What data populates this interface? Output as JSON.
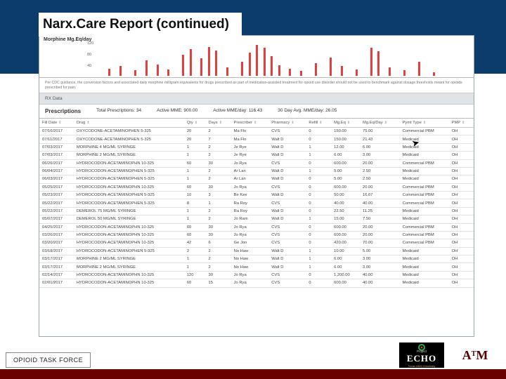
{
  "slide": {
    "title": "Narx.Care Report (continued)"
  },
  "chart": {
    "label": "Morphine Mg.Eq/day",
    "yticks": [
      120,
      80,
      40
    ],
    "bars": [
      {
        "x": 2,
        "h": 10
      },
      {
        "x": 5,
        "h": 14
      },
      {
        "x": 9,
        "h": 8
      },
      {
        "x": 12,
        "h": 22
      },
      {
        "x": 15,
        "h": 16
      },
      {
        "x": 18,
        "h": 9
      },
      {
        "x": 22,
        "h": 30
      },
      {
        "x": 24,
        "h": 38
      },
      {
        "x": 27,
        "h": 25
      },
      {
        "x": 29,
        "h": 41
      },
      {
        "x": 31,
        "h": 36
      },
      {
        "x": 34,
        "h": 12
      },
      {
        "x": 38,
        "h": 20
      },
      {
        "x": 40,
        "h": 33
      },
      {
        "x": 42,
        "h": 44
      },
      {
        "x": 44,
        "h": 40
      },
      {
        "x": 46,
        "h": 28
      },
      {
        "x": 48,
        "h": 15
      },
      {
        "x": 51,
        "h": 10
      },
      {
        "x": 54,
        "h": 7
      },
      {
        "x": 58,
        "h": 18
      },
      {
        "x": 62,
        "h": 26
      },
      {
        "x": 65,
        "h": 14
      },
      {
        "x": 69,
        "h": 9
      },
      {
        "x": 73,
        "h": 40
      },
      {
        "x": 75,
        "h": 35
      },
      {
        "x": 78,
        "h": 12
      },
      {
        "x": 82,
        "h": 8
      },
      {
        "x": 86,
        "h": 20
      },
      {
        "x": 90,
        "h": 5
      }
    ],
    "bar_color": "#e04040"
  },
  "cdc_note": "Per CDC guidance, the conversion factors and associated daily morphine milligram equivalents for drugs prescribed as part of medication-assisted treatment for opioid use disorder should not be used to benchmark against dosage thresholds meant for opioids prescribed for pain.",
  "rx_header": "RX Data",
  "summary": {
    "label": "Prescriptions",
    "total_label": "Total Prescriptions:",
    "total": "34",
    "active_mme_label": "Active MME:",
    "active_mme": "900.00",
    "active_day_label": "Active MME/day:",
    "active_day": "116.43",
    "avg_label": "30 Day Avg. MME/day:",
    "avg": "26.05"
  },
  "columns": [
    "Fill Date",
    "Drug",
    "Qty",
    "Days",
    "Prescriber",
    "Pharmacy",
    "Refill",
    "Mg.Eq",
    "Mg.Eq/Day",
    "Pymt Type",
    "PMP"
  ],
  "rows": [
    [
      "07/16/2017",
      "OXYCODONE-ACETAMINOPHEN 5-325",
      "20",
      "2",
      "Ma Flo",
      "CVS",
      "0",
      "150.00",
      "75.00",
      "Commercial PBM",
      "OH"
    ],
    [
      "07/11/2017",
      "OXYCODONE-ACETAMINOPHEN 5-325",
      "20",
      "7",
      "Ma Flo",
      "Walt D",
      "0",
      "150.00",
      "21.43",
      "Medicaid",
      "OH"
    ],
    [
      "07/03/2017",
      "MORPHINE 4 MG/ML SYRINGE",
      "1",
      "2",
      "Je Rye",
      "Walt D",
      "1",
      "12.00",
      "6.00",
      "Medicaid",
      "OH"
    ],
    [
      "07/03/2017",
      "MORPHINE 2 MG/ML SYRINGE",
      "1",
      "2",
      "Je Rye",
      "Walt D",
      "1",
      "6.00",
      "3.00",
      "Medicaid",
      "OH"
    ],
    [
      "06/26/2017",
      "HYDROCODON-ACETAMINOPHN 10-325",
      "60",
      "30",
      "Jo Rya",
      "CVS",
      "0",
      "600.00",
      "20.00",
      "Commercial PBM",
      "OH"
    ],
    [
      "06/04/2017",
      "HYDROCODON-ACETAMINOPHEN 5-325",
      "1",
      "2",
      "Ar Lan",
      "Walt D",
      "1",
      "5.00",
      "2.50",
      "Medicaid",
      "OH"
    ],
    [
      "06/03/2017",
      "HYDROCODON-ACETAMINOPHEN 5-325",
      "1",
      "2",
      "Ar Lan",
      "Walt D",
      "0",
      "5.00",
      "2.50",
      "Medicaid",
      "OH"
    ],
    [
      "05/25/2017",
      "HYDROCODON-ACETAMINOPHN 10-325",
      "60",
      "30",
      "Jo Rya",
      "CVS",
      "0",
      "600.00",
      "20.00",
      "Commercial PBM",
      "OH"
    ],
    [
      "05/23/2017",
      "HYDROCODON-ACETAMINOPHEN 5-325",
      "10",
      "3",
      "Be Kee",
      "Walt D",
      "0",
      "50.00",
      "16.67",
      "Commercial PBM",
      "OH"
    ],
    [
      "05/22/2017",
      "HYDROCODON-ACETAMINOPHEN 5-325",
      "8",
      "1",
      "Ra Roy",
      "CVS",
      "0",
      "40.00",
      "40.00",
      "Commercial PBM",
      "OH"
    ],
    [
      "05/22/2017",
      "DEMEROL 75 MG/ML SYRINGE",
      "1",
      "2",
      "Ra Roy",
      "Walt D",
      "0",
      "22.50",
      "11.25",
      "Medicaid",
      "OH"
    ],
    [
      "05/07/2017",
      "DEMEROL 50 MG/ML SYRINGE",
      "1",
      "2",
      "Jo Ram",
      "Walt D",
      "1",
      "15.00",
      "7.50",
      "Medicaid",
      "OH"
    ],
    [
      "04/25/2017",
      "HYDROCODON-ACETAMINOPHN 10-325",
      "60",
      "30",
      "Jo Rya",
      "CVS",
      "0",
      "600.00",
      "20.00",
      "Commercial PBM",
      "OH"
    ],
    [
      "03/26/2017",
      "HYDROCODON-ACETAMINOPHN 10-325",
      "60",
      "30",
      "Jo Rya",
      "CVS",
      "0",
      "600.00",
      "20.00",
      "Commercial PBM",
      "OH"
    ],
    [
      "03/20/2017",
      "HYDROCODON-ACETAMINOPHN 10-325",
      "42",
      "6",
      "Ge Jon",
      "CVS",
      "0",
      "420.00",
      "70.00",
      "Commercial PBM",
      "OH"
    ],
    [
      "03/18/2017",
      "HYDROCODON-ACETAMINOPHEN 5-325",
      "2",
      "2",
      "No Haw",
      "Walt D",
      "1",
      "10.00",
      "5.00",
      "Medicaid",
      "OH"
    ],
    [
      "03/17/2017",
      "MORPHINE 2 MG/ML SYRINGE",
      "1",
      "2",
      "No Haw",
      "Walt D",
      "1",
      "6.00",
      "3.00",
      "Medicaid",
      "OH"
    ],
    [
      "03/17/2017",
      "MORPHINE 2 MG/ML SYRINGE",
      "1",
      "2",
      "No Haw",
      "Walt D",
      "1",
      "6.00",
      "3.00",
      "Medicaid",
      "OH"
    ],
    [
      "02/14/2017",
      "HYDROCODON-ACETAMINOPHN 10-325",
      "120",
      "30",
      "Jo Rya",
      "CVS",
      "0",
      "1,200.00",
      "40.00",
      "Medicaid",
      "OH"
    ],
    [
      "02/01/2017",
      "HYDROCODON-ACETAMINOPHN 10-325",
      "60",
      "15",
      "Jo Rya",
      "CVS",
      "0",
      "600.00",
      "40.00",
      "Medicaid",
      "OH"
    ]
  ],
  "footer": {
    "label": "OPIOID TASK FORCE"
  },
  "logos": {
    "echo_top": "Project",
    "echo_main": "ECHO",
    "echo_sub": "Texas A&M University",
    "tamu": "A M",
    "tamu_t": "T"
  }
}
